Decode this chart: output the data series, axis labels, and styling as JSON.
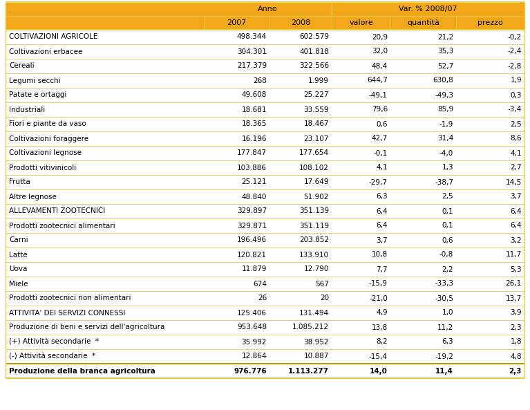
{
  "rows": [
    {
      "label": "COLTIVAZIONI AGRICOLE",
      "v2007": "498.344",
      "v2008": "602.579",
      "valore": "20,9",
      "quantita": "21,2",
      "prezzo": "-0,2",
      "bold": false,
      "indent": 0
    },
    {
      "label": "Coltivazioni erbacee",
      "v2007": "304.301",
      "v2008": "401.818",
      "valore": "32,0",
      "quantita": "35,3",
      "prezzo": "-2,4",
      "bold": false,
      "indent": 0
    },
    {
      "label": "Cereali",
      "v2007": "217.379",
      "v2008": "322.566",
      "valore": "48,4",
      "quantita": "52,7",
      "prezzo": "-2,8",
      "bold": false,
      "indent": 0
    },
    {
      "label": "Legumi secchi",
      "v2007": "268",
      "v2008": "1.999",
      "valore": "644,7",
      "quantita": "630,8",
      "prezzo": "1,9",
      "bold": false,
      "indent": 0
    },
    {
      "label": "Patate e ortaggi",
      "v2007": "49.608",
      "v2008": "25.227",
      "valore": "-49,1",
      "quantita": "-49,3",
      "prezzo": "0,3",
      "bold": false,
      "indent": 0
    },
    {
      "label": "Industriali",
      "v2007": "18.681",
      "v2008": "33.559",
      "valore": "79,6",
      "quantita": "85,9",
      "prezzo": "-3,4",
      "bold": false,
      "indent": 0
    },
    {
      "label": "Fiori e piante da vaso",
      "v2007": "18.365",
      "v2008": "18.467",
      "valore": "0,6",
      "quantita": "-1,9",
      "prezzo": "2,5",
      "bold": false,
      "indent": 0
    },
    {
      "label": "Coltivazioni foraggere",
      "v2007": "16.196",
      "v2008": "23.107",
      "valore": "42,7",
      "quantita": "31,4",
      "prezzo": "8,6",
      "bold": false,
      "indent": 0
    },
    {
      "label": "Coltivazioni legnose",
      "v2007": "177.847",
      "v2008": "177.654",
      "valore": "-0,1",
      "quantita": "-4,0",
      "prezzo": "4,1",
      "bold": false,
      "indent": 0
    },
    {
      "label": "Prodotti vitivinicoli",
      "v2007": "103.886",
      "v2008": "108.102",
      "valore": "4,1",
      "quantita": "1,3",
      "prezzo": "2,7",
      "bold": false,
      "indent": 0
    },
    {
      "label": "Frutta",
      "v2007": "25.121",
      "v2008": "17.649",
      "valore": "-29,7",
      "quantita": "-38,7",
      "prezzo": "14,5",
      "bold": false,
      "indent": 0
    },
    {
      "label": "Altre legnose",
      "v2007": "48.840",
      "v2008": "51.902",
      "valore": "6,3",
      "quantita": "2,5",
      "prezzo": "3,7",
      "bold": false,
      "indent": 0
    },
    {
      "label": "ALLEVAMENTI ZOOTECNICI",
      "v2007": "329.897",
      "v2008": "351.139",
      "valore": "6,4",
      "quantita": "0,1",
      "prezzo": "6,4",
      "bold": false,
      "indent": 0
    },
    {
      "label": "Prodotti zootecnici alimentari",
      "v2007": "329.871",
      "v2008": "351.119",
      "valore": "6,4",
      "quantita": "0,1",
      "prezzo": "6,4",
      "bold": false,
      "indent": 0
    },
    {
      "label": "Carni",
      "v2007": "196.496",
      "v2008": "203.852",
      "valore": "3,7",
      "quantita": "0,6",
      "prezzo": "3,2",
      "bold": false,
      "indent": 0
    },
    {
      "label": "Latte",
      "v2007": "120.821",
      "v2008": "133.910",
      "valore": "10,8",
      "quantita": "-0,8",
      "prezzo": "11,7",
      "bold": false,
      "indent": 0
    },
    {
      "label": "Uova",
      "v2007": "11.879",
      "v2008": "12.790",
      "valore": "7,7",
      "quantita": "2,2",
      "prezzo": "5,3",
      "bold": false,
      "indent": 0
    },
    {
      "label": "Miele",
      "v2007": "674",
      "v2008": "567",
      "valore": "-15,9",
      "quantita": "-33,3",
      "prezzo": "26,1",
      "bold": false,
      "indent": 0
    },
    {
      "label": "Prodotti zootecnici non alimentari",
      "v2007": "26",
      "v2008": "20",
      "valore": "-21,0",
      "quantita": "-30,5",
      "prezzo": "13,7",
      "bold": false,
      "indent": 0
    },
    {
      "label": "ATTIVITA' DEI SERVIZI CONNESSI",
      "v2007": "125.406",
      "v2008": "131.494",
      "valore": "4,9",
      "quantita": "1,0",
      "prezzo": "3,9",
      "bold": false,
      "indent": 0
    },
    {
      "label": "Produzione di beni e servizi dell'agricoltura",
      "v2007": "953.648",
      "v2008": "1.085.212",
      "valore": "13,8",
      "quantita": "11,2",
      "prezzo": "2,3",
      "bold": false,
      "indent": 0
    },
    {
      "label": "(+) Attività secondarie  *",
      "v2007": "35.992",
      "v2008": "38.952",
      "valore": "8,2",
      "quantita": "6,3",
      "prezzo": "1,8",
      "bold": false,
      "indent": 0
    },
    {
      "label": "(-) Attività secondarie  *",
      "v2007": "12.864",
      "v2008": "10.887",
      "valore": "-15,4",
      "quantita": "-19,2",
      "prezzo": "4,8",
      "bold": false,
      "indent": 0
    },
    {
      "label": "Produzione della branca agricoltura",
      "v2007": "976.776",
      "v2008": "1.113.277",
      "valore": "14,0",
      "quantita": "11,4",
      "prezzo": "2,3",
      "bold": true,
      "indent": 0,
      "last": true
    }
  ],
  "header_bg": "#F2A818",
  "row_bg": "#FFFFFF",
  "border_color": "#E8C84A",
  "last_row_border": "#C8A000",
  "fig_width": 7.67,
  "fig_height": 5.93,
  "dpi": 100
}
